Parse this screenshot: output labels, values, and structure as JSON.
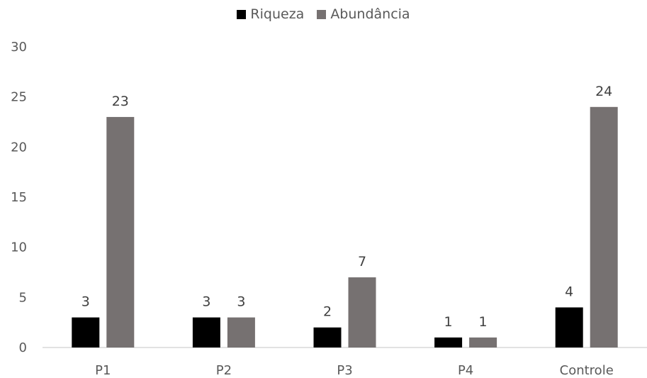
{
  "chart_data": {
    "type": "bar",
    "title": "",
    "xlabel": "",
    "ylabel": "",
    "categories": [
      "P1",
      "P2",
      "P3",
      "P4",
      "Controle"
    ],
    "series": [
      {
        "name": "Riqueza",
        "values": [
          3,
          3,
          2,
          1,
          4
        ],
        "color": "#000000"
      },
      {
        "name": "Abundância",
        "values": [
          23,
          3,
          7,
          1,
          24
        ],
        "color": "#767171"
      }
    ],
    "ylim": [
      0,
      30
    ],
    "yticks": [
      "0",
      "5",
      "10",
      "15",
      "20",
      "25",
      "30"
    ],
    "data_labels": true,
    "grid": false,
    "legend_position": "top"
  }
}
